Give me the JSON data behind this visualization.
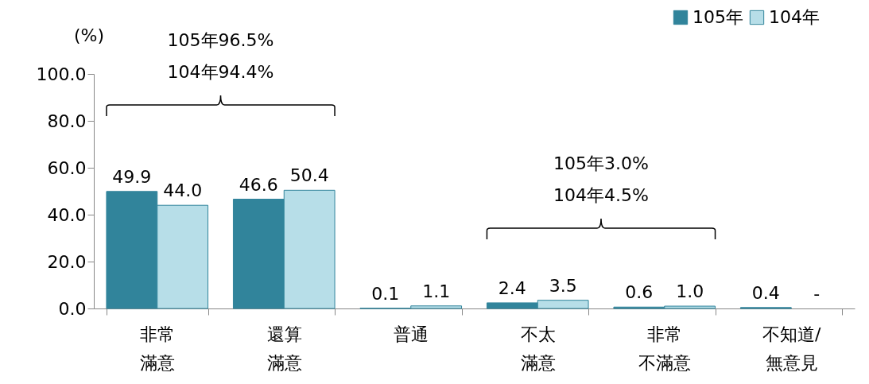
{
  "chart_data": {
    "type": "bar",
    "ylabel": "(%)",
    "categories": [
      "非常滿意",
      "還算滿意",
      "普通",
      "不太滿意",
      "非常不滿意",
      "不知道/無意見"
    ],
    "series": [
      {
        "name": "105年",
        "color": "#31849b",
        "values": [
          49.9,
          46.6,
          0.1,
          2.4,
          0.6,
          0.4
        ],
        "value_labels": [
          "49.9",
          "46.6",
          "0.1",
          "2.4",
          "0.6",
          "0.4"
        ]
      },
      {
        "name": "104年",
        "color": "#b7dee8",
        "values": [
          44.0,
          50.4,
          1.1,
          3.5,
          1.0,
          null
        ],
        "value_labels": [
          "44.0",
          "50.4",
          "1.1",
          "3.5",
          "1.0",
          "-"
        ]
      }
    ],
    "ylim": [
      0,
      100
    ],
    "yticks": [
      {
        "value": 0,
        "label": "0.0"
      },
      {
        "value": 20,
        "label": "20.0"
      },
      {
        "value": 40,
        "label": "40.0"
      },
      {
        "value": 60,
        "label": "60.0"
      },
      {
        "value": 80,
        "label": "80.0"
      },
      {
        "value": 100,
        "label": "100.0"
      }
    ],
    "annotations": [
      "105年96.5%\n104年94.4%",
      "105年3.0%\n104年4.5%"
    ],
    "legend": "top right",
    "grid": false
  }
}
